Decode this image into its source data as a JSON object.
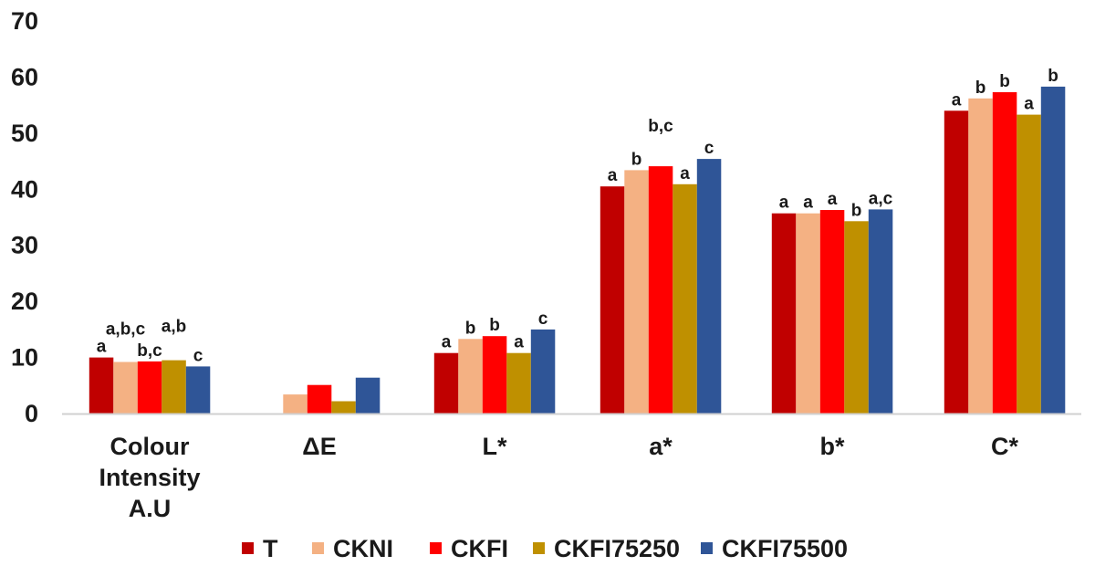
{
  "chart_data": {
    "type": "bar",
    "title": "",
    "xlabel": "",
    "ylabel": "",
    "ylim": [
      0,
      70
    ],
    "yticks": [
      "0",
      "10",
      "20",
      "30",
      "40",
      "50",
      "60",
      "70"
    ],
    "grid": false,
    "legend_position": "bottom",
    "categories": [
      [
        "Colour",
        "Intensity",
        "A.U"
      ],
      [
        "ΔE"
      ],
      [
        "L*"
      ],
      [
        "a*"
      ],
      [
        "b*"
      ],
      [
        "C*"
      ]
    ],
    "series": [
      {
        "name": "T",
        "color": "#C00000",
        "values": [
          10.0,
          null,
          10.8,
          40.5,
          35.7,
          54.0
        ],
        "labels": [
          "a",
          "",
          "a",
          "a",
          "a",
          "a"
        ]
      },
      {
        "name": "CKNI",
        "color": "#F4B183",
        "values": [
          9.2,
          3.4,
          13.3,
          43.4,
          35.7,
          56.2
        ],
        "labels": [
          "a,b,c",
          "",
          "b",
          "b",
          "a",
          "b"
        ]
      },
      {
        "name": "CKFI",
        "color": "#FF0000",
        "values": [
          9.3,
          5.1,
          13.8,
          44.1,
          36.3,
          57.3
        ],
        "labels": [
          "b,c",
          "",
          "b",
          "b,c",
          "a",
          "b"
        ]
      },
      {
        "name": "CKFI75250",
        "color": "#BF9000",
        "values": [
          9.5,
          2.2,
          10.8,
          40.9,
          34.3,
          53.3
        ],
        "labels": [
          "a,b",
          "",
          "a",
          "a",
          "b",
          "a"
        ]
      },
      {
        "name": "CKFI75500",
        "color": "#2F5597",
        "values": [
          8.4,
          6.4,
          15.0,
          45.4,
          36.4,
          58.3
        ],
        "labels": [
          "c",
          "",
          "c",
          "c",
          "a,c",
          "b"
        ]
      }
    ]
  }
}
